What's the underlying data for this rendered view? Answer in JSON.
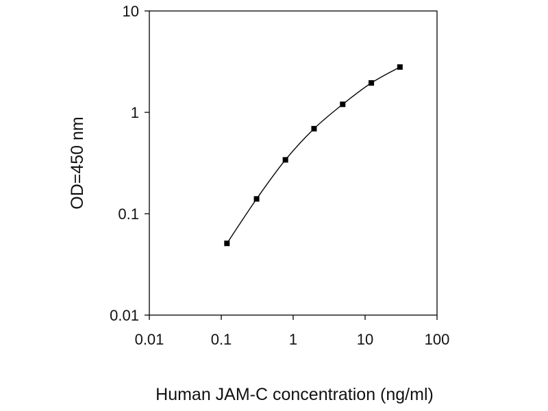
{
  "chart_data": {
    "type": "line",
    "xlabel": "Human JAM-C concentration (ng/ml)",
    "ylabel": "OD=450 nm",
    "xscale": "log",
    "yscale": "log",
    "xlim": [
      0.01,
      100
    ],
    "ylim": [
      0.01,
      10
    ],
    "xticks": [
      "0.01",
      "0.1",
      "1",
      "10",
      "100"
    ],
    "yticks": [
      "0.01",
      "0.1",
      "1",
      "10"
    ],
    "grid": false,
    "legend": "none",
    "series": [
      {
        "color": "#000000",
        "marker": "square",
        "x": [
          0.12,
          0.31,
          0.78,
          1.95,
          4.88,
          12.2,
          30.5
        ],
        "y": [
          0.051,
          0.14,
          0.34,
          0.69,
          1.2,
          1.95,
          2.8
        ]
      }
    ]
  }
}
